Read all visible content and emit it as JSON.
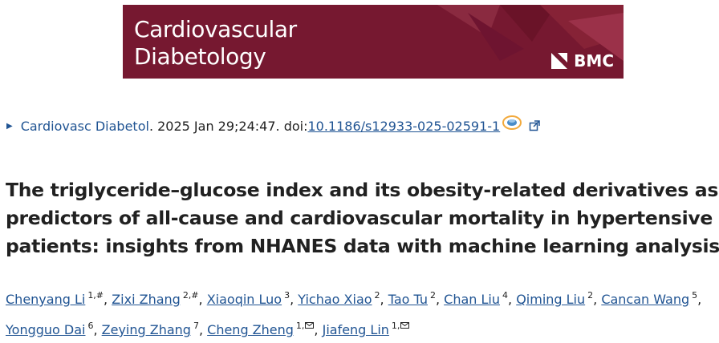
{
  "banner": {
    "journal_line1": "Cardiovascular",
    "journal_line2": "Diabetology",
    "publisher": "BMC",
    "bg_color": "#761830"
  },
  "citation": {
    "journal_link": "Cardiovasc Diabetol",
    "date_text": ". 2025 Jan 29;24:47. doi: ",
    "doi": "10.1186/s12933-025-02591-1",
    "doi_badge_icon": "doi-crossref-icon",
    "external_icon": "external-link-icon"
  },
  "article": {
    "title_lines": [
      "The triglyceride–glucose index and its obesity-related derivatives as",
      "predictors of all-cause and cardiovascular mortality in hypertensive",
      "patients: insights from NHANES data with machine learning analysis"
    ]
  },
  "authors": [
    {
      "name": "Chenyang Li",
      "sup": "1,#"
    },
    {
      "name": "Zixi Zhang",
      "sup": "2,#"
    },
    {
      "name": "Xiaoqin Luo",
      "sup": "3"
    },
    {
      "name": "Yichao Xiao",
      "sup": "2"
    },
    {
      "name": "Tao Tu",
      "sup": "2"
    },
    {
      "name": "Chan Liu",
      "sup": "4"
    },
    {
      "name": "Qiming Liu",
      "sup": "2"
    },
    {
      "name": "Cancan Wang",
      "sup": "5"
    },
    {
      "name": "Yongguo Dai",
      "sup": "6"
    },
    {
      "name": "Zeying Zhang",
      "sup": "7"
    },
    {
      "name": "Cheng Zheng",
      "sup": "1,"
    },
    {
      "name": "Jiafeng Lin",
      "sup": "1,"
    }
  ],
  "separator": ", ",
  "colors": {
    "link": "#205493",
    "text": "#212121"
  }
}
